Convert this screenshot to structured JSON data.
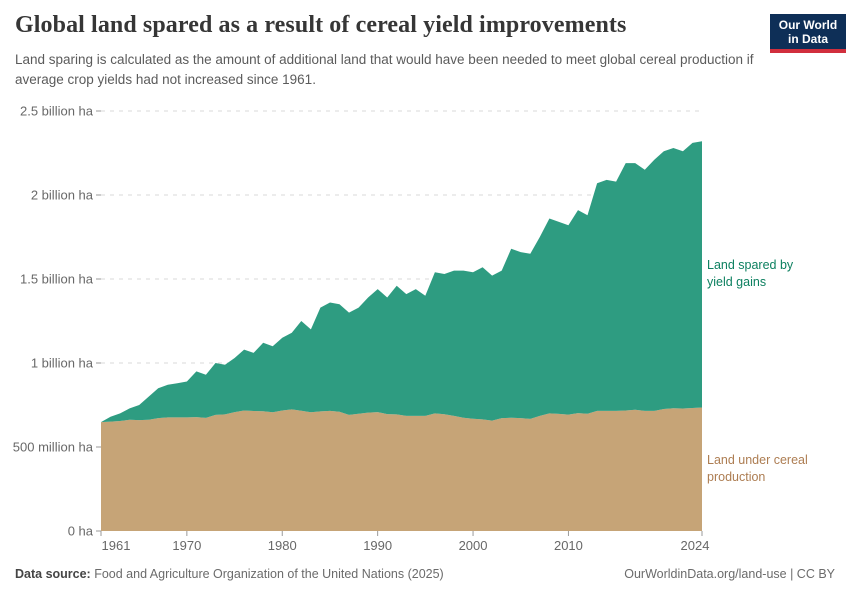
{
  "header": {
    "title": "Global land spared as a result of cereal yield improvements",
    "subtitle": "Land sparing is calculated as the amount of additional land that would have been needed to meet global cereal production if average crop yields had not increased since 1961.",
    "logo": {
      "line1": "Our World",
      "line2": "in Data",
      "bg_color": "#0e2f57",
      "accent_color": "#d12f3d"
    }
  },
  "chart_data": {
    "type": "area",
    "stacked": true,
    "grid": "dashed-horizontal",
    "legend_position": "right-annotations",
    "unit": "million ha",
    "x": [
      1961,
      1962,
      1963,
      1964,
      1965,
      1966,
      1967,
      1968,
      1969,
      1970,
      1971,
      1972,
      1973,
      1974,
      1975,
      1976,
      1977,
      1978,
      1979,
      1980,
      1981,
      1982,
      1983,
      1984,
      1985,
      1986,
      1987,
      1988,
      1989,
      1990,
      1991,
      1992,
      1993,
      1994,
      1995,
      1996,
      1997,
      1998,
      1999,
      2000,
      2001,
      2002,
      2003,
      2004,
      2005,
      2006,
      2007,
      2008,
      2009,
      2010,
      2011,
      2012,
      2013,
      2014,
      2015,
      2016,
      2017,
      2018,
      2019,
      2020,
      2021,
      2022,
      2023,
      2024
    ],
    "series": [
      {
        "name": "Land under cereal production",
        "color": "#c6a477",
        "label_color": "#ad7d52",
        "values": [
          648,
          651,
          655,
          662,
          660,
          662,
          672,
          676,
          676,
          676,
          678,
          673,
          691,
          694,
          708,
          717,
          714,
          713,
          707,
          717,
          724,
          716,
          707,
          712,
          715,
          710,
          691,
          698,
          705,
          708,
          696,
          694,
          685,
          685,
          685,
          700,
          695,
          685,
          674,
          668,
          664,
          657,
          672,
          674,
          672,
          667,
          685,
          700,
          697,
          693,
          702,
          698,
          715,
          715,
          715,
          717,
          722,
          715,
          715,
          726,
          731,
          729,
          732,
          735
        ]
      },
      {
        "name": "Land spared by yield gains",
        "color": "#2e9c81",
        "label_color": "#0d8060",
        "values": [
          0,
          29,
          45,
          68,
          90,
          138,
          178,
          194,
          204,
          214,
          272,
          257,
          309,
          296,
          322,
          363,
          346,
          407,
          393,
          433,
          456,
          534,
          493,
          618,
          645,
          640,
          609,
          632,
          685,
          732,
          694,
          766,
          725,
          755,
          715,
          840,
          835,
          865,
          876,
          872,
          906,
          863,
          878,
          1006,
          988,
          983,
          1065,
          1160,
          1143,
          1127,
          1208,
          1182,
          1355,
          1375,
          1365,
          1473,
          1468,
          1435,
          1495,
          1534,
          1549,
          1531,
          1578,
          1585
        ]
      }
    ],
    "ylim_million_ha": [
      0,
      2500
    ],
    "yticks": [
      {
        "value": 0,
        "label": "0 ha"
      },
      {
        "value": 500,
        "label": "500 million ha"
      },
      {
        "value": 1000,
        "label": "1 billion ha"
      },
      {
        "value": 1500,
        "label": "1.5 billion ha"
      },
      {
        "value": 2000,
        "label": "2 billion ha"
      },
      {
        "value": 2500,
        "label": "2.5 billion ha"
      }
    ],
    "xticks": [
      {
        "value": 1961,
        "label": "1961"
      },
      {
        "value": 1970,
        "label": "1970"
      },
      {
        "value": 1980,
        "label": "1980"
      },
      {
        "value": 1990,
        "label": "1990"
      },
      {
        "value": 2000,
        "label": "2000"
      },
      {
        "value": 2010,
        "label": "2010"
      },
      {
        "value": 2024,
        "label": "2024"
      }
    ],
    "grid_color": "#d8d8d8",
    "tick_color": "#9a9a9a"
  },
  "footer": {
    "source_label": "Data source:",
    "source_text": " Food and Agriculture Organization of the United Nations (2025)",
    "link_text": "OurWorldinData.org/land-use | CC BY"
  }
}
